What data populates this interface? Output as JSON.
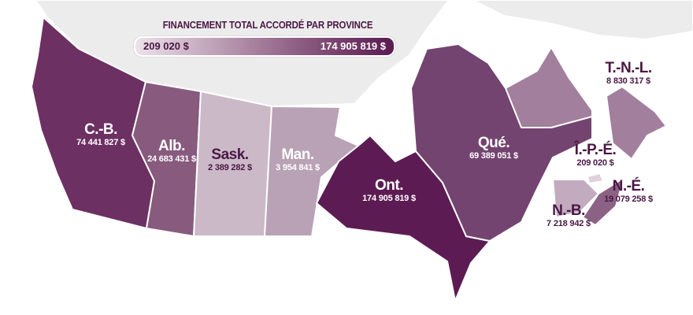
{
  "legend": {
    "title": "FINANCEMENT TOTAL ACCORDÉ PAR PROVINCE",
    "min_label": "209 020 $",
    "max_label": "174 905 819 $",
    "min_color": "#ece2ea",
    "max_color": "#5a1a50"
  },
  "provinces": {
    "bc": {
      "name": "C.-B.",
      "value": "74 441 827 $",
      "color": "#6d3062"
    },
    "ab": {
      "name": "Alb.",
      "value": "24 683 431 $",
      "color": "#875a7e"
    },
    "sk": {
      "name": "Sask.",
      "value": "2 389 282 $",
      "color": "#cbb9c8"
    },
    "mb": {
      "name": "Man.",
      "value": "3 954 841 $",
      "color": "#b9a2b5"
    },
    "on": {
      "name": "Ont.",
      "value": "174 905 819 $",
      "color": "#5c1c53"
    },
    "qc": {
      "name": "Qué.",
      "value": "69 389 051 $",
      "color": "#734470"
    },
    "nl": {
      "name": "T.-N.-L.",
      "value": "8 830 317 $",
      "color": "#a27f9c"
    },
    "pe": {
      "name": "Î.-P.-É.",
      "value": "209 020 $",
      "color": "#ddd2dc"
    },
    "ns": {
      "name": "N.-É.",
      "value": "19 079 258 $",
      "color": "#8c6284"
    },
    "nb": {
      "name": "N.-B.",
      "value": "7 218 942 $",
      "color": "#c2abbf"
    }
  },
  "territories_color": "#ececec"
}
